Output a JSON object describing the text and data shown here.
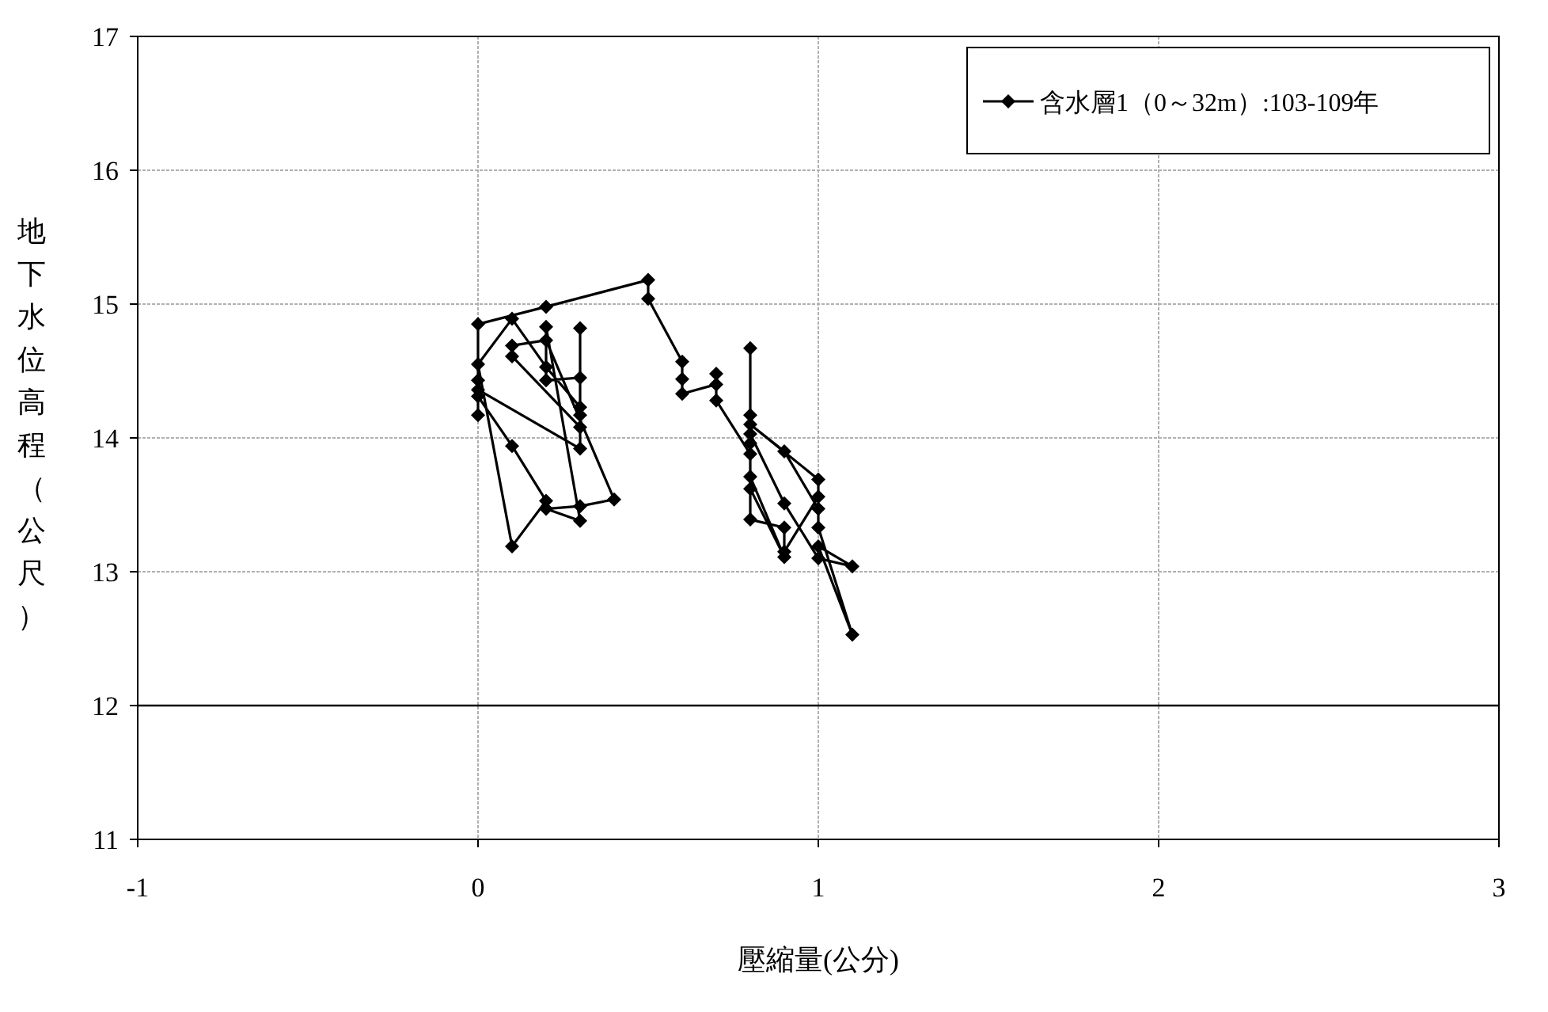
{
  "chart_data": {
    "type": "line",
    "xlabel": "壓縮量(公分)",
    "ylabel": "地下水位高程（公尺）",
    "xlim": [
      -1,
      3
    ],
    "xticks": [
      -1,
      0,
      1,
      2,
      3
    ],
    "ylim": [
      11,
      17
    ],
    "yticks": [
      11,
      12,
      13,
      14,
      15,
      16,
      17
    ],
    "grid": true,
    "legend": "top right",
    "marker": "diamond",
    "line_style": "solid",
    "ref_lines": [
      {
        "axis": "y",
        "value": 12,
        "color": "#000000"
      }
    ],
    "series": [
      {
        "name": "含水層1（0～32m）:103-109年",
        "color": "#000000",
        "x": [
          0,
          0,
          0.1,
          0.2,
          0.1,
          0,
          0.1,
          0.2,
          0.3,
          0.3,
          0.3,
          0.3,
          0.2,
          0.2,
          0.3,
          0.2,
          0.3,
          0.4,
          0.2,
          0.1,
          0.1,
          0.3,
          0.3,
          0,
          0,
          0,
          0.2,
          0.5,
          0.5,
          0.6,
          0.6,
          0.6,
          0.7,
          0.7,
          0.7,
          0.8,
          0.8,
          0.8,
          0.8,
          0.9,
          0.9,
          1.0,
          1.0,
          0.8,
          0.9,
          1.0,
          1.0,
          1.1,
          1.0,
          1.1,
          1.0,
          0.9,
          0.8,
          0.8,
          0.9,
          0.8,
          0.8
        ],
        "values": [
          14.17,
          14.31,
          13.94,
          13.53,
          13.19,
          14.55,
          14.89,
          14.53,
          14.23,
          14.17,
          14.82,
          14.45,
          14.43,
          14.83,
          13.38,
          13.47,
          13.49,
          13.54,
          14.73,
          14.69,
          14.61,
          14.08,
          13.92,
          14.36,
          14.43,
          14.85,
          14.98,
          15.18,
          15.04,
          14.57,
          14.44,
          14.33,
          14.4,
          14.48,
          14.28,
          13.88,
          14.17,
          14.67,
          13.39,
          13.33,
          13.15,
          13.56,
          13.69,
          14.1,
          13.9,
          13.47,
          13.33,
          12.53,
          13.19,
          13.04,
          13.1,
          13.51,
          14.03,
          13.71,
          13.11,
          13.62,
          13.96
        ]
      }
    ]
  }
}
